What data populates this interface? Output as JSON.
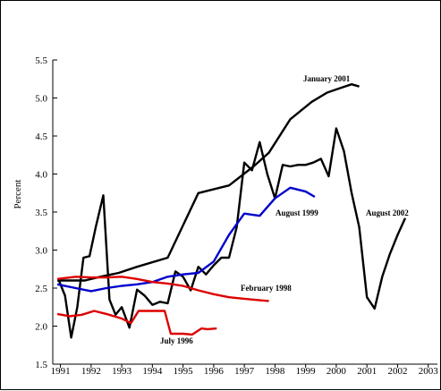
{
  "chart_data": {
    "type": "line",
    "title": "",
    "xlabel": "",
    "ylabel": "Percent",
    "xlim": [
      1990.75,
      2003.3
    ],
    "ylim": [
      1.5,
      5.5
    ],
    "xticks": [
      1991,
      1992,
      1993,
      1994,
      1995,
      1996,
      1997,
      1998,
      1999,
      2000,
      2001,
      2002,
      2003
    ],
    "yticks": [
      1.5,
      2.0,
      2.5,
      3.0,
      3.5,
      4.0,
      4.5,
      5.0,
      5.5
    ],
    "ytick_labels": [
      "1.5",
      "2.0",
      "2.5",
      "3.0",
      "3.5",
      "4.0",
      "4.5",
      "5.0",
      "5.5"
    ],
    "grid": false,
    "series": [
      {
        "name": "January 2001",
        "color": "#000000",
        "points": [
          [
            1990.9,
            2.6
          ],
          [
            1991.3,
            2.6
          ],
          [
            1991.8,
            2.6
          ],
          [
            1992.3,
            2.65
          ],
          [
            1992.9,
            2.7
          ],
          [
            1993.5,
            2.78
          ],
          [
            1994.5,
            2.9
          ],
          [
            1995.5,
            3.75
          ],
          [
            1996.5,
            3.85
          ],
          [
            1997.3,
            4.1
          ],
          [
            1997.8,
            4.28
          ],
          [
            1998.5,
            4.72
          ],
          [
            1999.2,
            4.95
          ],
          [
            1999.7,
            5.07
          ],
          [
            2000.2,
            5.14
          ],
          [
            2000.5,
            5.18
          ],
          [
            2000.75,
            5.15
          ]
        ]
      },
      {
        "name": "August 2002",
        "color": "#000000",
        "points": [
          [
            1990.95,
            2.6
          ],
          [
            1991.15,
            2.4
          ],
          [
            1991.35,
            1.85
          ],
          [
            1991.55,
            2.25
          ],
          [
            1991.75,
            2.9
          ],
          [
            1991.95,
            2.92
          ],
          [
            1992.15,
            3.3
          ],
          [
            1992.4,
            3.72
          ],
          [
            1992.6,
            2.35
          ],
          [
            1992.8,
            2.15
          ],
          [
            1993.0,
            2.25
          ],
          [
            1993.25,
            1.98
          ],
          [
            1993.5,
            2.48
          ],
          [
            1993.75,
            2.4
          ],
          [
            1994.0,
            2.28
          ],
          [
            1994.25,
            2.32
          ],
          [
            1994.5,
            2.3
          ],
          [
            1994.75,
            2.72
          ],
          [
            1995.0,
            2.65
          ],
          [
            1995.25,
            2.47
          ],
          [
            1995.5,
            2.78
          ],
          [
            1995.75,
            2.68
          ],
          [
            1996.0,
            2.8
          ],
          [
            1996.25,
            2.9
          ],
          [
            1996.5,
            2.9
          ],
          [
            1996.75,
            3.3
          ],
          [
            1997.0,
            4.15
          ],
          [
            1997.25,
            4.05
          ],
          [
            1997.5,
            4.42
          ],
          [
            1997.75,
            4.0
          ],
          [
            1998.0,
            3.68
          ],
          [
            1998.25,
            4.12
          ],
          [
            1998.5,
            4.1
          ],
          [
            1998.75,
            4.12
          ],
          [
            1999.0,
            4.12
          ],
          [
            1999.25,
            4.15
          ],
          [
            1999.5,
            4.2
          ],
          [
            1999.75,
            3.97
          ],
          [
            2000.0,
            4.6
          ],
          [
            2000.25,
            4.3
          ],
          [
            2000.5,
            3.75
          ],
          [
            2000.75,
            3.3
          ],
          [
            2001.0,
            2.38
          ],
          [
            2001.25,
            2.23
          ],
          [
            2001.5,
            2.65
          ],
          [
            2001.75,
            2.95
          ],
          [
            2002.0,
            3.2
          ],
          [
            2002.25,
            3.42
          ]
        ]
      },
      {
        "name": "August 1999",
        "color": "#0000cc",
        "points": [
          [
            1990.9,
            2.55
          ],
          [
            1991.5,
            2.5
          ],
          [
            1992.0,
            2.46
          ],
          [
            1992.5,
            2.5
          ],
          [
            1993.0,
            2.53
          ],
          [
            1993.5,
            2.55
          ],
          [
            1994.0,
            2.58
          ],
          [
            1994.5,
            2.65
          ],
          [
            1995.0,
            2.68
          ],
          [
            1995.5,
            2.7
          ],
          [
            1996.0,
            2.85
          ],
          [
            1996.5,
            3.2
          ],
          [
            1997.0,
            3.48
          ],
          [
            1997.5,
            3.45
          ],
          [
            1998.0,
            3.68
          ],
          [
            1998.5,
            3.82
          ],
          [
            1999.0,
            3.77
          ],
          [
            1999.3,
            3.7
          ]
        ]
      },
      {
        "name": "February 1998",
        "color": "#dd0000",
        "points": [
          [
            1990.9,
            2.62
          ],
          [
            1991.5,
            2.65
          ],
          [
            1992.0,
            2.64
          ],
          [
            1992.5,
            2.64
          ],
          [
            1993.0,
            2.65
          ],
          [
            1993.5,
            2.62
          ],
          [
            1994.0,
            2.58
          ],
          [
            1994.5,
            2.56
          ],
          [
            1995.0,
            2.53
          ],
          [
            1995.5,
            2.47
          ],
          [
            1996.0,
            2.42
          ],
          [
            1996.5,
            2.38
          ],
          [
            1997.0,
            2.36
          ],
          [
            1997.5,
            2.34
          ],
          [
            1997.8,
            2.33
          ]
        ]
      },
      {
        "name": "July 1996",
        "color": "#dd0000",
        "points": [
          [
            1990.9,
            2.16
          ],
          [
            1991.3,
            2.13
          ],
          [
            1991.7,
            2.15
          ],
          [
            1992.1,
            2.2
          ],
          [
            1992.5,
            2.16
          ],
          [
            1993.0,
            2.1
          ],
          [
            1993.3,
            2.04
          ],
          [
            1993.55,
            2.2
          ],
          [
            1994.0,
            2.2
          ],
          [
            1994.4,
            2.2
          ],
          [
            1994.6,
            1.9
          ],
          [
            1995.0,
            1.9
          ],
          [
            1995.3,
            1.89
          ],
          [
            1995.6,
            1.97
          ],
          [
            1995.8,
            1.96
          ],
          [
            1996.1,
            1.97
          ]
        ]
      }
    ]
  }
}
